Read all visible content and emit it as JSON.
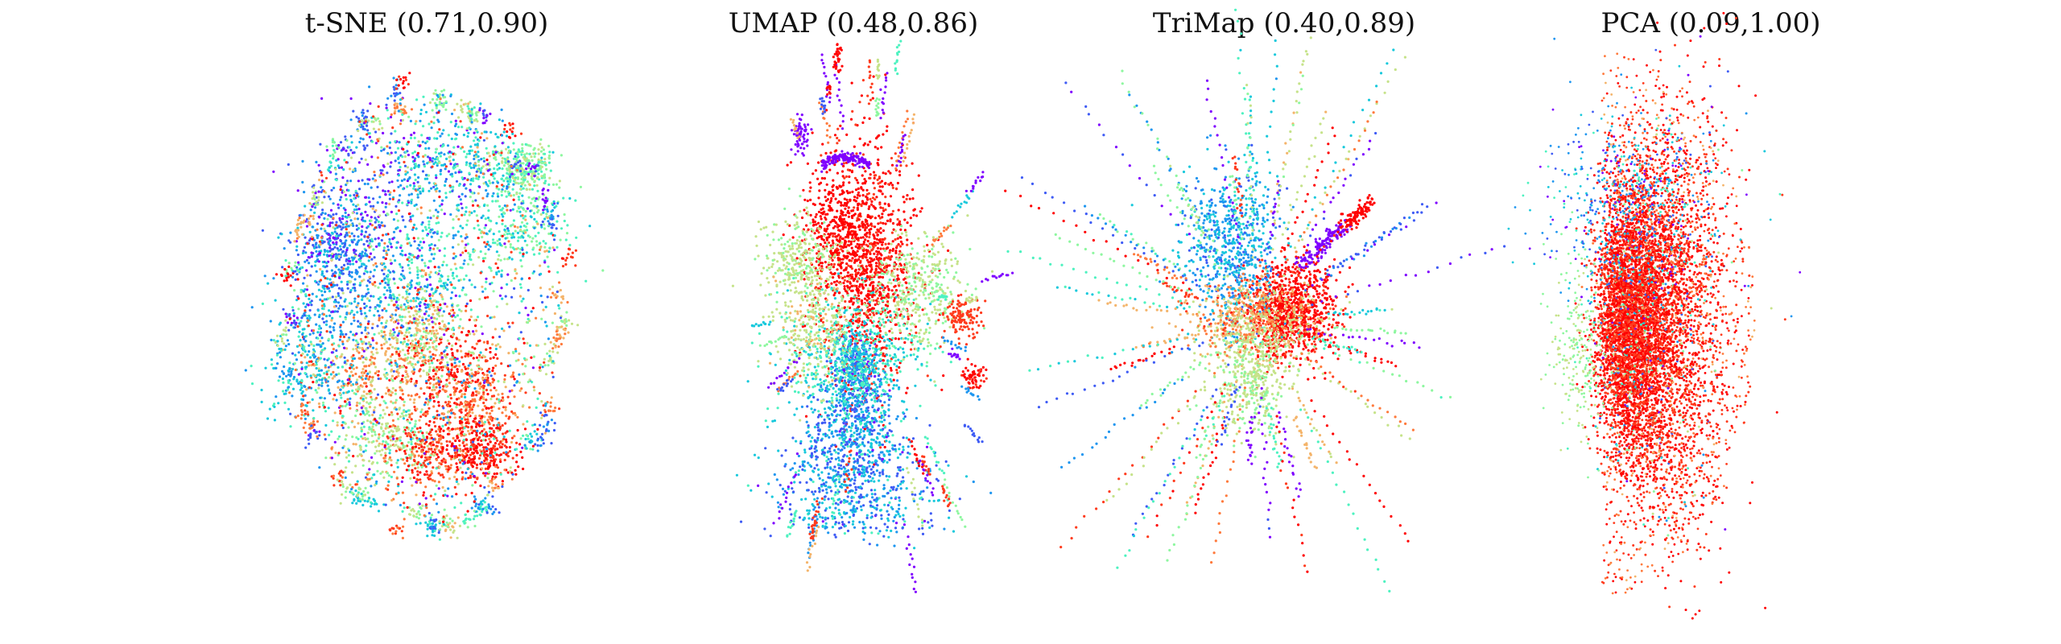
{
  "chart_data": [
    {
      "type": "scatter",
      "title": "t-SNE (0.71,0.90)",
      "method": "t-SNE",
      "scores": [
        0.71,
        0.9
      ],
      "xlabel": "",
      "ylabel": "",
      "axes_visible": false,
      "grid": false,
      "colormap": "rainbow",
      "legend": "none"
    },
    {
      "type": "scatter",
      "title": "UMAP (0.48,0.86)",
      "method": "UMAP",
      "scores": [
        0.48,
        0.86
      ],
      "xlabel": "",
      "ylabel": "",
      "axes_visible": false,
      "grid": false,
      "colormap": "rainbow",
      "legend": "none"
    },
    {
      "type": "scatter",
      "title": "TriMap (0.40,0.89)",
      "method": "TriMap",
      "scores": [
        0.4,
        0.89
      ],
      "xlabel": "",
      "ylabel": "",
      "axes_visible": false,
      "grid": false,
      "colormap": "rainbow",
      "legend": "none"
    },
    {
      "type": "scatter",
      "title": "PCA (0.09,1.00)",
      "method": "PCA",
      "scores": [
        0.09,
        1.0
      ],
      "xlabel": "",
      "ylabel": "",
      "axes_visible": false,
      "grid": false,
      "colormap": "rainbow",
      "legend": "none"
    }
  ],
  "colors": {
    "background": "#ffffff",
    "title": "#111111",
    "palette": [
      "#7f00ff",
      "#3f5cf5",
      "#1e96f0",
      "#18c9dc",
      "#4df2c0",
      "#8ef7a0",
      "#c6e38a",
      "#f4b46a",
      "#ff7a3c",
      "#ff3b1d",
      "#ff0000"
    ]
  }
}
